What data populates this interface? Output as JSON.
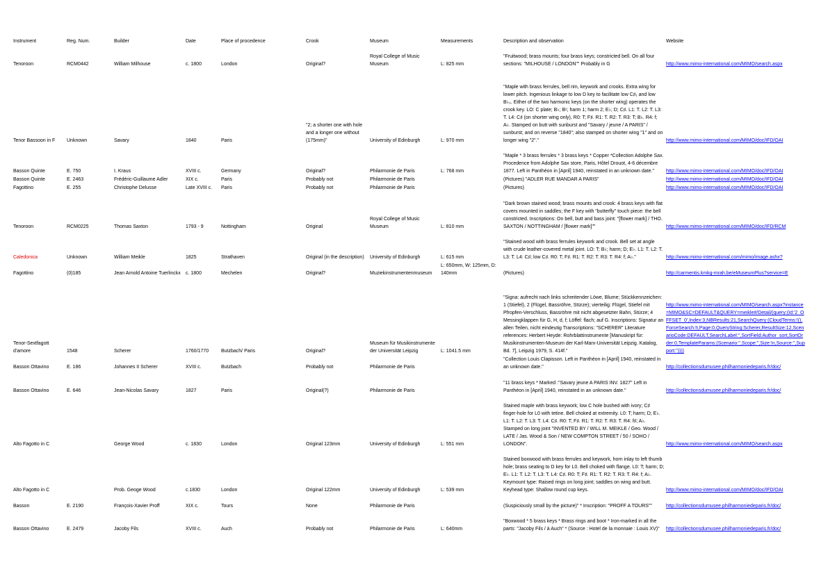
{
  "table": {
    "headers": [
      "Instrument",
      "Reg. Num.",
      "Builder",
      "Date",
      "Place of procedence",
      "Crook",
      "Museum",
      "Measurements",
      "Description and observation",
      "Website"
    ],
    "rows": [
      [
        "Tenoroon",
        "RCM0442",
        "William Milhouse",
        "c. 1800",
        "London",
        "Original?",
        "Royal College of Music Museum",
        "L: 825 mm",
        "\"Fruitwood; brass mounts; four brass keys; constricted bell. On all four sections: \"MILHOUSE / LONDON\"\" Probably in G",
        "http://www.mimo-international.com/MIMO/search.aspx"
      ],
      [
        "Tenor Bassoon in F",
        "Unknown",
        "Savary",
        "1840",
        "Paris",
        "\"2; a shorter one with hole and a longer one without (175mm)\"",
        "University of Edinburgh",
        "L: 970 mm",
        "\"Maple with brass ferrules, bell rim, keywork and crooks. Extra wing for lower pitch. Ingenious linkage to low D key to facilitate low C♯₁ and low B♭₀. Either of the two harmonic keys (on the shorter wing) operates the crook key. LO: C plate; B♭; B♮; harm 1; harm 2; E♭; D; C♯. L1: T. L2: T. L3: T. L4: C♯ (on shorter wing only), R0: T; F♯. R1: T. R2: T. R3: T; B♭. R4: f; A♭. Stamped on butt with sunburst and \"Savary / jeune / A PARIS\" / sunburst; and on reverse \"1840\"; also stamped on shorter wing \"1\" and on longer wing \"2\".\"",
        "http://www.mimo-international.com/MIMO/doc/IFD/OAI"
      ],
      [
        "Basson Quinte",
        "E. 750",
        "I. Kraus",
        "XVIII c.",
        "Germany",
        "Original?",
        "Philarmonie de Paris",
        "L: 768 mm",
        "\"Maple * 3 brass ferrules * 3 brass keys * Copper *Collection Adolphe Sax. Procedence from Adolphe Sax store, Paris, Hôtel Drouot, 4-6 décembre 1877. Left in Panthéon in [April] 1940, reinstated in an unknown date.\"",
        "http://www.mimo-international.com/MIMO/doc/IFD/OAI"
      ],
      [
        "Basson Quinte",
        "E. 2463",
        "Frédéric-Guillaume Adler",
        "XIX c.",
        "Paris",
        "Probably not",
        "Philarmonie de Paris",
        null,
        "(Pictures) \"ADLER RUE MANDAR A PARIS\"",
        "http://www.mimo-international.com/MIMO/doc/IFD/OAI"
      ],
      [
        "Fagottino",
        "E. 255",
        "Christophe Delusse",
        "Late XVIII c.",
        "Paris",
        "Probably not",
        "Philarmonie de Paris",
        null,
        "(Pictures)",
        "http://www.mimo-international.com/MIMO/doc/IFD/OAI"
      ],
      [
        "Tenoroon",
        "RCM0225",
        "Thomas Saxton",
        "1793 - 9",
        "Nottingham",
        "Original",
        "Royal College of Music Museum",
        "L: 810 mm",
        "\"Dark brown stained wood; brass mounts and crook: 4 brass keys with flat covers mounted in saddles; the F key with \"butterfly\" touch piece: the bell constricted. Inscriptions: On bell, butt and bass joint: \"[flower mark] / THO. SAXTON / NOTTINGHAM / [flower mark]\"\"",
        "http://www.mimo-international.com/MIMO/doc/IFD/RCM"
      ],
      [
        "Caledonica",
        "Unknown",
        "William Meikle",
        "1825",
        "Strathaven",
        "Original (in the description)",
        "University of Edinburgh",
        "L: 615 mm",
        "\"Stained wood with brass ferrules keywork and crook. Bell set at angle with crude leather-covered metal joint. LO: T; B♭; harm; D; E♭. L1: T. L2: T. L3: T. L4: C♯; low C♯. R0: T; F♯. R1: T. R2: T. R3: T. R4: f; A♭.\"",
        "http://www.mimo-international.com/mimo/image.ashx?"
      ],
      [
        "Fagottino",
        "(0)185",
        "Jean Arnold Antoine Tuerlinckx",
        "c. 1800",
        "Mechelen",
        "Original?",
        "Muziekinstrumentenmuseum",
        "L: 650mm, W: 125mm, D: 140mm",
        "(Pictures)",
        "http://carmentis.kmkg-mrah.be/eMuseumPlus?service=E"
      ],
      [
        "Tenor-Sextfagott d'amore",
        "1548",
        "Scherer",
        "1760/1770",
        "Butzbach/ Paris",
        "Original?",
        "Museum für Musikinstrumente der Universität Leipzig",
        "L: 1041.5 mm",
        "\"Signa: aufrecht nach links schreitender Löwe, Blume; Stückkennzeichen: 1 (Stiefel), 2 (Flügel, Bassröhre, Stürze); vierteilig: Flügel, Stiefel mit Pfropfen-Verschluss, Bassröhre mit nicht abgesetzter Bahn, Stürze; 4 Messingklappen für G, H, d, f; Löffel: flach; auf G. Inscriptions: Signatur an allen Teilen, nicht eindeutig Transcriptions: \"SCHERER\" Literature references: Herbert Heyde: Rohrblattinstrumente [Manuskript für: Musikinstrumenten-Museum der Karl-Marx-Universität Leipzig. Katalog, Bd. 7], Leipzig 1979, S. 414f.\"",
        "http://www.mimo-international.com/MIMO/search.aspx?instance=MIMO&SC=DEFAULT&QUERY=meikle#/Detail/(query:(Id:'2_OFFSET_0',Index:3,NBResults:21,SearchQuery:(CloudTerms:!(),ForceSearch:!t,Page:0,QueryString:Scherer,ResultSize:12,ScenarioCode:DEFAULT,SearchLabel:'',SortField:Author_sort,SortOrder:0,TemplateParams:(Scenario:'',Scope:'',Size:!n,Source:'',Support:''))))"
      ],
      [
        "Basson Ottavino",
        "E. 186",
        "Johannes II Scherer",
        "XVIII c.",
        "Butzbach",
        "Probably not",
        "Philarmonie de Paris",
        null,
        "\"Collection Louis Clapisson. Left in Panthéon in [April] 1940, reinstated in an unknown date.\"",
        "http://collectionsdumusee.philharmoniedeparis.fr/doc/"
      ],
      [
        "Basson Ottavino",
        "E. 646",
        "Jean-Nicolas Savary",
        "1827",
        "Paris",
        "Original(?)",
        "Philarmonie de Paris",
        null,
        "\"11 brass keys * Marked :\"Savary jeune A PARIS INV. 1827\" Left in Panthéon in [April] 1940, reinstated in an unknown date.\"",
        "http://collectionsdumusee.philharmoniedeparis.fr/doc/"
      ],
      [
        "Alto Fagotto in C",
        null,
        "George Wood",
        "c. 1830",
        "London",
        "Original 123mm",
        "University of Edinburgh",
        "L: 551 mm",
        "Stained maple with brass keywork; low C hole bushed with ivory; C♯ finger-hole for L0 with tetine. Bell choked at extremity. L0: T; harm; D; E♭. L1: T. L2: T. L3: T. L4: C♯. R0: T; F♯. R1: T. R2: T. R3: T. R4: f♯; A♭. Stamped on long joint \"INVENTED BY / WILL M. MEIKLE / Geo. Wood / LATE / Jas. Wood & Son / NEW COMPTON STREET / 50 / SOHO / LONDON\".",
        "http://www.mimo-international.com/MIMO/search.aspx"
      ],
      [
        "Alto Fagotto in C",
        null,
        "Prob. Geoge Wood",
        "c.1830",
        "London",
        "Original 122mm",
        "University of Edinburgh",
        "L: 539 mm",
        "Stained boxwood with brass ferrules and keywork, horn inlay to left thumb hole; brass seating to D key for L0. Bell choked with flange. L0: T; harm; D; E♭. L1: T. L2: T. L3: T. L4: C♯. R0: T; F♯. R1: T. R2: T. R3: T. R4: f; A♭. Keymount type: Raised rings on long joint; saddles on wing and butt. Keyhead type: Shallow round cup keys.",
        "http://www.mimo-international.com/MIMO/doc/IFD/OAI"
      ],
      [
        "Basson",
        "E. 2190",
        "François-Xavier Proff",
        "XIX c.",
        "Tours",
        "None",
        "Philarmonie de Paris",
        null,
        "(Suspiciously small by the picture)\" * Inscription: \"PROFF A TOURS\"\"",
        "http://collectionsdumusee.philharmoniedeparis.fr/doc/"
      ],
      [
        "Basson Ottavino",
        "E. 2479",
        "Jacoby Fils",
        "XVIII c.",
        "Auch",
        "Probably not",
        "Philarmonie de Paris",
        "L: 640mm",
        "\"Boxwood * 5 brass keys * Brass rings and boot * Iron-marked in all the parts: \"Jacoby Fils / à Auch\" * (Source : Hotel de la monnaie : Louis XV)\"",
        "http://collectionsdumusee.philharmoniedeparis.fr/doc/"
      ]
    ]
  }
}
